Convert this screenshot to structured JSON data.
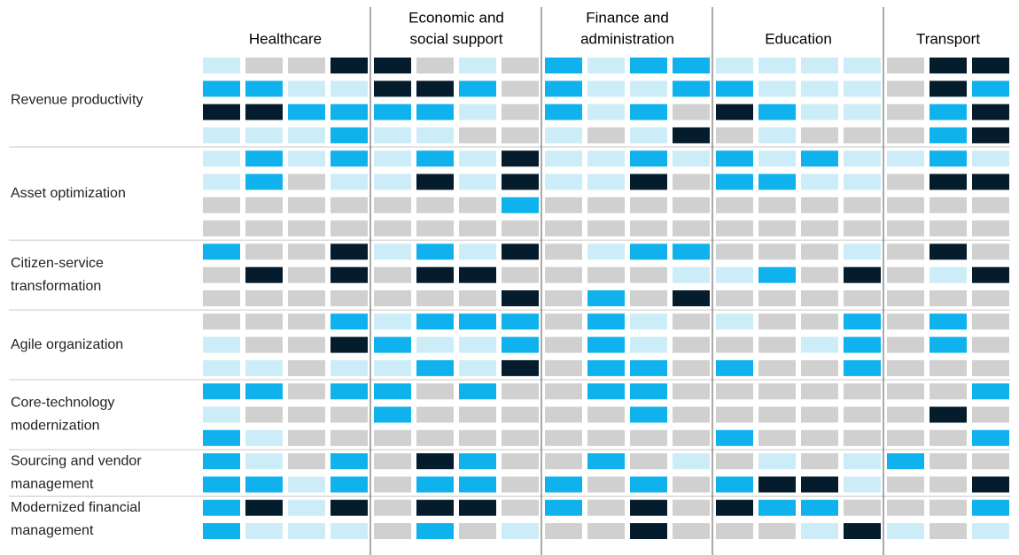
{
  "chart_data": {
    "type": "heatmap",
    "colors": [
      "#ccedf7",
      "#d0d0d0",
      "#0fb2ec",
      "#051c2c"
    ],
    "column_groups": [
      {
        "name": [
          "Healthcare"
        ]
      },
      {
        "name": [
          "Economic and",
          "social support"
        ]
      },
      {
        "name": [
          "Finance and",
          "administration"
        ]
      },
      {
        "name": [
          "Education"
        ]
      },
      {
        "name": [
          "Transport"
        ]
      }
    ],
    "row_groups": [
      {
        "name": [
          "Revenue productivity"
        ],
        "rows": [
          [
            [
              0,
              1,
              1,
              3
            ],
            [
              3,
              1,
              0,
              1
            ],
            [
              2,
              0,
              2,
              2
            ],
            [
              0,
              0,
              0,
              0
            ],
            [
              1,
              3,
              3
            ]
          ],
          [
            [
              2,
              2,
              0,
              0
            ],
            [
              3,
              3,
              2,
              1
            ],
            [
              2,
              0,
              0,
              2
            ],
            [
              2,
              0,
              0,
              0
            ],
            [
              1,
              3,
              2
            ]
          ],
          [
            [
              3,
              3,
              2,
              2
            ],
            [
              2,
              2,
              0,
              1
            ],
            [
              2,
              0,
              2,
              1
            ],
            [
              3,
              2,
              0,
              0
            ],
            [
              1,
              2,
              3
            ]
          ],
          [
            [
              0,
              0,
              0,
              2
            ],
            [
              0,
              0,
              1,
              1
            ],
            [
              0,
              1,
              0,
              3
            ],
            [
              1,
              0,
              1,
              1
            ],
            [
              1,
              2,
              3
            ]
          ]
        ]
      },
      {
        "name": [
          "Asset optimization"
        ],
        "rows": [
          [
            [
              0,
              2,
              0,
              2
            ],
            [
              0,
              2,
              0,
              3
            ],
            [
              0,
              0,
              2,
              0
            ],
            [
              2,
              0,
              2,
              0
            ],
            [
              0,
              2,
              0
            ]
          ],
          [
            [
              0,
              2,
              1,
              0
            ],
            [
              0,
              3,
              0,
              3
            ],
            [
              0,
              0,
              3,
              1
            ],
            [
              2,
              2,
              0,
              0
            ],
            [
              1,
              3,
              3
            ]
          ],
          [
            [
              1,
              1,
              1,
              1
            ],
            [
              1,
              1,
              1,
              2
            ],
            [
              1,
              1,
              1,
              1
            ],
            [
              1,
              1,
              1,
              1
            ],
            [
              1,
              1,
              1
            ]
          ],
          [
            [
              1,
              1,
              1,
              1
            ],
            [
              1,
              1,
              1,
              1
            ],
            [
              1,
              1,
              1,
              1
            ],
            [
              1,
              1,
              1,
              1
            ],
            [
              1,
              1,
              1
            ]
          ]
        ]
      },
      {
        "name": [
          "Citizen-service",
          "transformation"
        ],
        "rows": [
          [
            [
              2,
              1,
              1,
              3
            ],
            [
              0,
              2,
              0,
              3
            ],
            [
              1,
              0,
              2,
              2
            ],
            [
              1,
              1,
              1,
              0
            ],
            [
              1,
              3,
              1
            ]
          ],
          [
            [
              1,
              3,
              1,
              3
            ],
            [
              1,
              3,
              3,
              1
            ],
            [
              1,
              1,
              1,
              0
            ],
            [
              0,
              2,
              1,
              3
            ],
            [
              1,
              0,
              3
            ]
          ],
          [
            [
              1,
              1,
              1,
              1
            ],
            [
              1,
              1,
              1,
              3
            ],
            [
              1,
              2,
              1,
              3
            ],
            [
              1,
              1,
              1,
              1
            ],
            [
              1,
              1,
              1
            ]
          ]
        ]
      },
      {
        "name": [
          "Agile organization"
        ],
        "rows": [
          [
            [
              1,
              1,
              1,
              2
            ],
            [
              0,
              2,
              2,
              2
            ],
            [
              1,
              2,
              0,
              1
            ],
            [
              0,
              1,
              1,
              2
            ],
            [
              1,
              2,
              1
            ]
          ],
          [
            [
              0,
              1,
              1,
              3
            ],
            [
              2,
              0,
              0,
              2
            ],
            [
              1,
              2,
              0,
              1
            ],
            [
              1,
              1,
              0,
              2
            ],
            [
              1,
              2,
              1
            ]
          ],
          [
            [
              0,
              0,
              1,
              0
            ],
            [
              0,
              2,
              0,
              3
            ],
            [
              1,
              2,
              2,
              1
            ],
            [
              2,
              1,
              1,
              2
            ],
            [
              1,
              1,
              1
            ]
          ]
        ]
      },
      {
        "name": [
          "Core-technology",
          "modernization"
        ],
        "rows": [
          [
            [
              2,
              2,
              1,
              2
            ],
            [
              2,
              1,
              2,
              1
            ],
            [
              1,
              2,
              2,
              1
            ],
            [
              1,
              1,
              1,
              1
            ],
            [
              1,
              1,
              2
            ]
          ],
          [
            [
              0,
              1,
              1,
              1
            ],
            [
              2,
              1,
              1,
              1
            ],
            [
              1,
              1,
              2,
              1
            ],
            [
              1,
              1,
              1,
              1
            ],
            [
              1,
              3,
              1
            ]
          ],
          [
            [
              2,
              0,
              1,
              1
            ],
            [
              1,
              1,
              1,
              1
            ],
            [
              1,
              1,
              1,
              1
            ],
            [
              2,
              1,
              1,
              1
            ],
            [
              1,
              1,
              2
            ]
          ]
        ]
      },
      {
        "name": [
          "Sourcing and vendor",
          "management"
        ],
        "rows": [
          [
            [
              2,
              0,
              1,
              2
            ],
            [
              1,
              3,
              2,
              1
            ],
            [
              1,
              2,
              1,
              0
            ],
            [
              1,
              0,
              1,
              0
            ],
            [
              2,
              1,
              1
            ]
          ],
          [
            [
              2,
              2,
              0,
              2
            ],
            [
              1,
              2,
              2,
              1
            ],
            [
              2,
              1,
              2,
              1
            ],
            [
              2,
              3,
              3,
              0
            ],
            [
              1,
              1,
              3
            ]
          ]
        ]
      },
      {
        "name": [
          "Modernized financial",
          "management"
        ],
        "rows": [
          [
            [
              2,
              3,
              0,
              3
            ],
            [
              1,
              3,
              3,
              1
            ],
            [
              2,
              1,
              3,
              1
            ],
            [
              3,
              2,
              2,
              1
            ],
            [
              1,
              1,
              2
            ]
          ],
          [
            [
              2,
              0,
              0,
              0
            ],
            [
              1,
              2,
              1,
              0
            ],
            [
              1,
              1,
              3,
              1
            ],
            [
              1,
              1,
              0,
              3
            ],
            [
              0,
              1,
              0
            ]
          ]
        ]
      }
    ]
  }
}
